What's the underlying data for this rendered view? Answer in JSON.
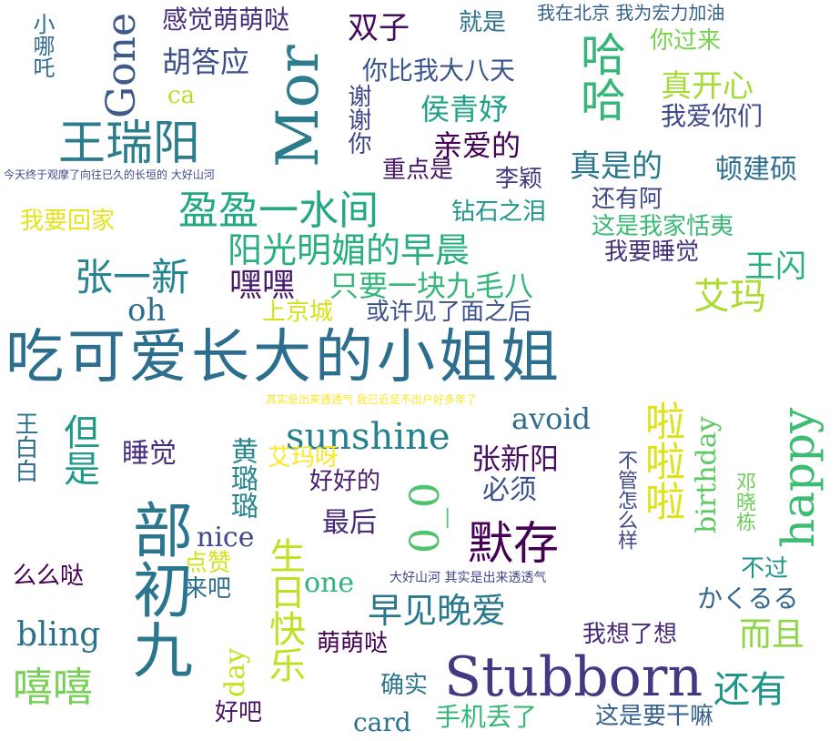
{
  "colors": {
    "background": "#ffffff",
    "palette": [
      "#440154",
      "#3b528b",
      "#21918c",
      "#5ec962",
      "#fde725"
    ]
  },
  "words": [
    {
      "text": "吃可爱长大的小姐姐",
      "color": "#2c6e8e"
    },
    {
      "text": "王瑞阳",
      "color": "#2b7d8e"
    },
    {
      "text": "Mor",
      "color": "#2c7c8e"
    },
    {
      "text": "Gone",
      "color": "#3d5a8a"
    },
    {
      "text": "感觉萌萌哒",
      "color": "#472e7c"
    },
    {
      "text": "胡答应",
      "color": "#3b4f8a"
    },
    {
      "text": "小哪吒",
      "color": "#2e6b8e"
    },
    {
      "text": "双子",
      "color": "#440d5e"
    },
    {
      "text": "就是",
      "color": "#2d728e"
    },
    {
      "text": "我在北京 我为宏力加油",
      "color": "#34618d"
    },
    {
      "text": "你过来",
      "color": "#7ad151"
    },
    {
      "text": "哈哈",
      "color": "#35b779"
    },
    {
      "text": "你比我大八天",
      "color": "#3a548c"
    },
    {
      "text": "ca",
      "color": "#b8de29"
    },
    {
      "text": "谢谢你",
      "color": "#3f4788"
    },
    {
      "text": "真开心",
      "color": "#a5db36"
    },
    {
      "text": "侯青妤",
      "color": "#1fa187"
    },
    {
      "text": "我爱你们",
      "color": "#3e4a89"
    },
    {
      "text": "亲爱的",
      "color": "#440154"
    },
    {
      "text": "真是的",
      "color": "#2a788e"
    },
    {
      "text": "顿建硕",
      "color": "#2d708e"
    },
    {
      "text": "今天终于观摩了向往已久的长垣的 大好山河",
      "color": "#3e4989"
    },
    {
      "text": "重点是",
      "color": "#48186a"
    },
    {
      "text": "李颖",
      "color": "#443983"
    },
    {
      "text": "钻石之泪",
      "color": "#1f968b"
    },
    {
      "text": "还有阿",
      "color": "#3e4a89"
    },
    {
      "text": "盈盈一水间",
      "color": "#22a884"
    },
    {
      "text": "我要回家",
      "color": "#e5e419"
    },
    {
      "text": "这是我家恬夷",
      "color": "#3aba76"
    },
    {
      "text": "阳光明媚的早晨",
      "color": "#29af7f"
    },
    {
      "text": "我要睡觉",
      "color": "#46337e"
    },
    {
      "text": "张一新",
      "color": "#25848e"
    },
    {
      "text": "王闪",
      "color": "#2ab07f"
    },
    {
      "text": "嘿嘿",
      "color": "#481a6c"
    },
    {
      "text": "只要一块九毛八",
      "color": "#35b779"
    },
    {
      "text": "艾玛",
      "color": "#addc30"
    },
    {
      "text": "oh",
      "color": "#2e6d8e"
    },
    {
      "text": "上京城",
      "color": "#d5e21a"
    },
    {
      "text": "或许见了面之后",
      "color": "#3b528b"
    },
    {
      "text": "其实是出来透透气 我已近足不出户好多年了",
      "color": "#fde725"
    },
    {
      "text": "王白白",
      "color": "#2e6f8e"
    },
    {
      "text": "但是",
      "color": "#1f998a"
    },
    {
      "text": "睡觉",
      "color": "#472f7d"
    },
    {
      "text": "黄璐璐",
      "color": "#25858e"
    },
    {
      "text": "sunshine",
      "color": "#27808e"
    },
    {
      "text": "avoid",
      "color": "#2f6c8e"
    },
    {
      "text": "啦啦啦",
      "color": "#dde318"
    },
    {
      "text": "birthday",
      "color": "#5ec962"
    },
    {
      "text": "happy",
      "color": "#3dbc74"
    },
    {
      "text": "艾玛呀",
      "color": "#fde725"
    },
    {
      "text": "张新阳",
      "color": "#471063"
    },
    {
      "text": "好好的",
      "color": "#481c6e"
    },
    {
      "text": "必须",
      "color": "#3b528b"
    },
    {
      "text": "不管怎么样",
      "color": "#3f4889"
    },
    {
      "text": "邓晓栋",
      "color": "#6ccd5a"
    },
    {
      "text": "0_0",
      "color": "#4ec36b"
    },
    {
      "text": "默存",
      "color": "#440154"
    },
    {
      "text": "最后",
      "color": "#482878"
    },
    {
      "text": "nice",
      "color": "#3e4a89"
    },
    {
      "text": "点赞",
      "color": "#d2e21b"
    },
    {
      "text": "来吧",
      "color": "#2e6e8e"
    },
    {
      "text": "生日快乐",
      "color": "#c2df23"
    },
    {
      "text": "部初九",
      "color": "#2a768e"
    },
    {
      "text": "么么哒",
      "color": "#440154"
    },
    {
      "text": "one",
      "color": "#2fb47c"
    },
    {
      "text": "大好山河 其实是出来透透气",
      "color": "#3f4788"
    },
    {
      "text": "不过",
      "color": "#20938c"
    },
    {
      "text": "かくるる",
      "color": "#31668e"
    },
    {
      "text": "早见晚爱",
      "color": "#2a778e"
    },
    {
      "text": "而且",
      "color": "#8fd744"
    },
    {
      "text": "bling",
      "color": "#2c728e"
    },
    {
      "text": "我想了想",
      "color": "#472a7a"
    },
    {
      "text": "萌萌哒",
      "color": "#440154"
    },
    {
      "text": "day",
      "color": "#c8e020"
    },
    {
      "text": "Stubborn",
      "color": "#453781"
    },
    {
      "text": "还有",
      "color": "#1f968b"
    },
    {
      "text": "嘻嘻",
      "color": "#75d054"
    },
    {
      "text": "确实",
      "color": "#2b758e"
    },
    {
      "text": "好吧",
      "color": "#481467"
    },
    {
      "text": "card",
      "color": "#2c728e"
    },
    {
      "text": "手机丢了",
      "color": "#37b878"
    },
    {
      "text": "这是要干嘛",
      "color": "#34618d"
    }
  ]
}
